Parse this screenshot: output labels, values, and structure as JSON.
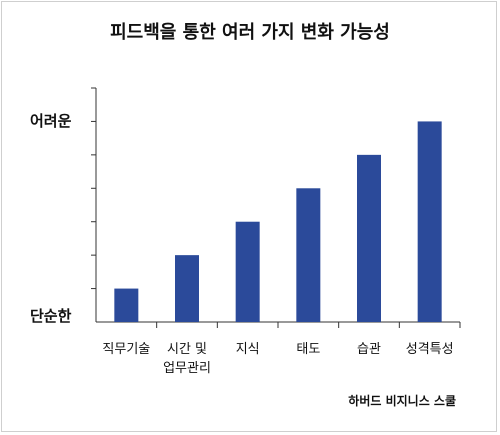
{
  "chart_data": {
    "type": "bar",
    "title": "피드백을 통한 여러 가지 변화 가능성",
    "categories": [
      [
        "직무기술"
      ],
      [
        "시간 및",
        "업무관리"
      ],
      [
        "지식"
      ],
      [
        "태도"
      ],
      [
        "습관"
      ],
      [
        "성격특성"
      ]
    ],
    "values": [
      1,
      2,
      3,
      4,
      5,
      6
    ],
    "ylim": [
      0,
      7
    ],
    "y_top_label": "어려운",
    "y_bottom_label": "단순한",
    "source": "하버드 비지니스 스쿨",
    "bar_color": "#2b4a9a",
    "grid": false
  }
}
